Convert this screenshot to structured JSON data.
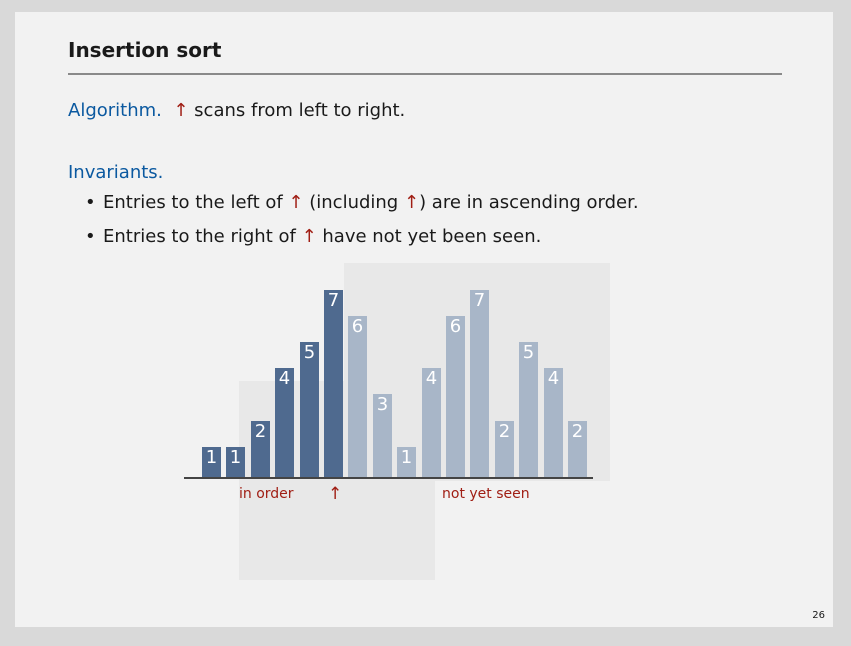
{
  "slide": {
    "title": "Insertion sort",
    "algorithm_label": "Algorithm.",
    "algorithm_text": "scans from left to right.",
    "arrow_glyph": "↑",
    "invariants_label": "Invariants.",
    "bullets": [
      {
        "before": "Entries to the left of ",
        "middle": " (including ",
        "after": ") are in ascending order."
      },
      {
        "before": "Entries to the right of ",
        "after": " have not yet been seen."
      }
    ],
    "bullet_glyph": "•",
    "page_number": "26"
  },
  "diagram": {
    "bars": [
      {
        "value": "1",
        "state": "sorted"
      },
      {
        "value": "1",
        "state": "sorted"
      },
      {
        "value": "2",
        "state": "sorted"
      },
      {
        "value": "4",
        "state": "sorted"
      },
      {
        "value": "5",
        "state": "sorted"
      },
      {
        "value": "7",
        "state": "sorted"
      },
      {
        "value": "6",
        "state": "unseen"
      },
      {
        "value": "3",
        "state": "unseen"
      },
      {
        "value": "1",
        "state": "unseen"
      },
      {
        "value": "4",
        "state": "unseen"
      },
      {
        "value": "6",
        "state": "unseen"
      },
      {
        "value": "7",
        "state": "unseen"
      },
      {
        "value": "2",
        "state": "unseen"
      },
      {
        "value": "5",
        "state": "unseen"
      },
      {
        "value": "4",
        "state": "unseen"
      },
      {
        "value": "2",
        "state": "unseen"
      }
    ],
    "in_order_label": "in order",
    "not_yet_seen_label": "not yet seen",
    "pointer_glyph": "↑",
    "colors": {
      "sorted": "#4f6a8f",
      "unseen": "#a8b6c8",
      "accent": "#a01e14",
      "heading": "#0b59a0"
    }
  }
}
